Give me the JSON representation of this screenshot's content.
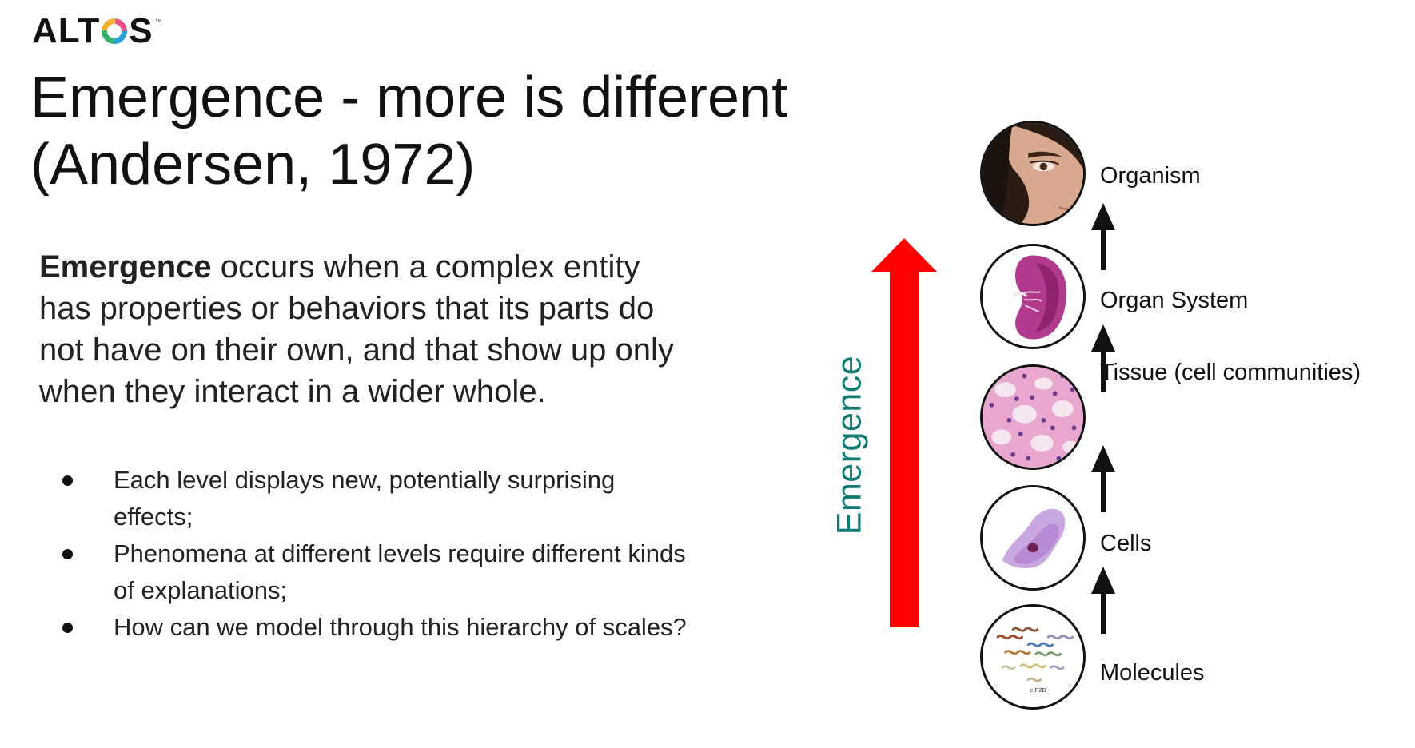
{
  "logo": {
    "text_before": "ALT",
    "text_after": "S",
    "trademark": "™"
  },
  "title": {
    "line1": "Emergence - more is different",
    "line2": "(Andersen, 1972)"
  },
  "body": {
    "term": "Emergence",
    "definition": " occurs when a complex entity has properties or behaviors that its parts do not have on their own, and that show up only when they interact in a wider whole."
  },
  "bullets": [
    "Each level displays new, potentially surprising effects;",
    "Phenomena at different levels require different kinds of explanations;",
    "How can we model through this hierarchy of scales?"
  ],
  "arrow": {
    "label": "Emergence",
    "arrow_color": "#ff0000",
    "label_color": "#0f7a73"
  },
  "levels": [
    {
      "label": "Organism",
      "image": "face-photo"
    },
    {
      "label": "Organ System",
      "image": "kidney-section"
    },
    {
      "label": "Tissue (cell communities)",
      "image": "tissue-micrograph"
    },
    {
      "label": "Cells",
      "image": "cell-micrograph"
    },
    {
      "label": "Molecules",
      "image": "protein-structure",
      "image_caption": "eIF2B"
    }
  ]
}
